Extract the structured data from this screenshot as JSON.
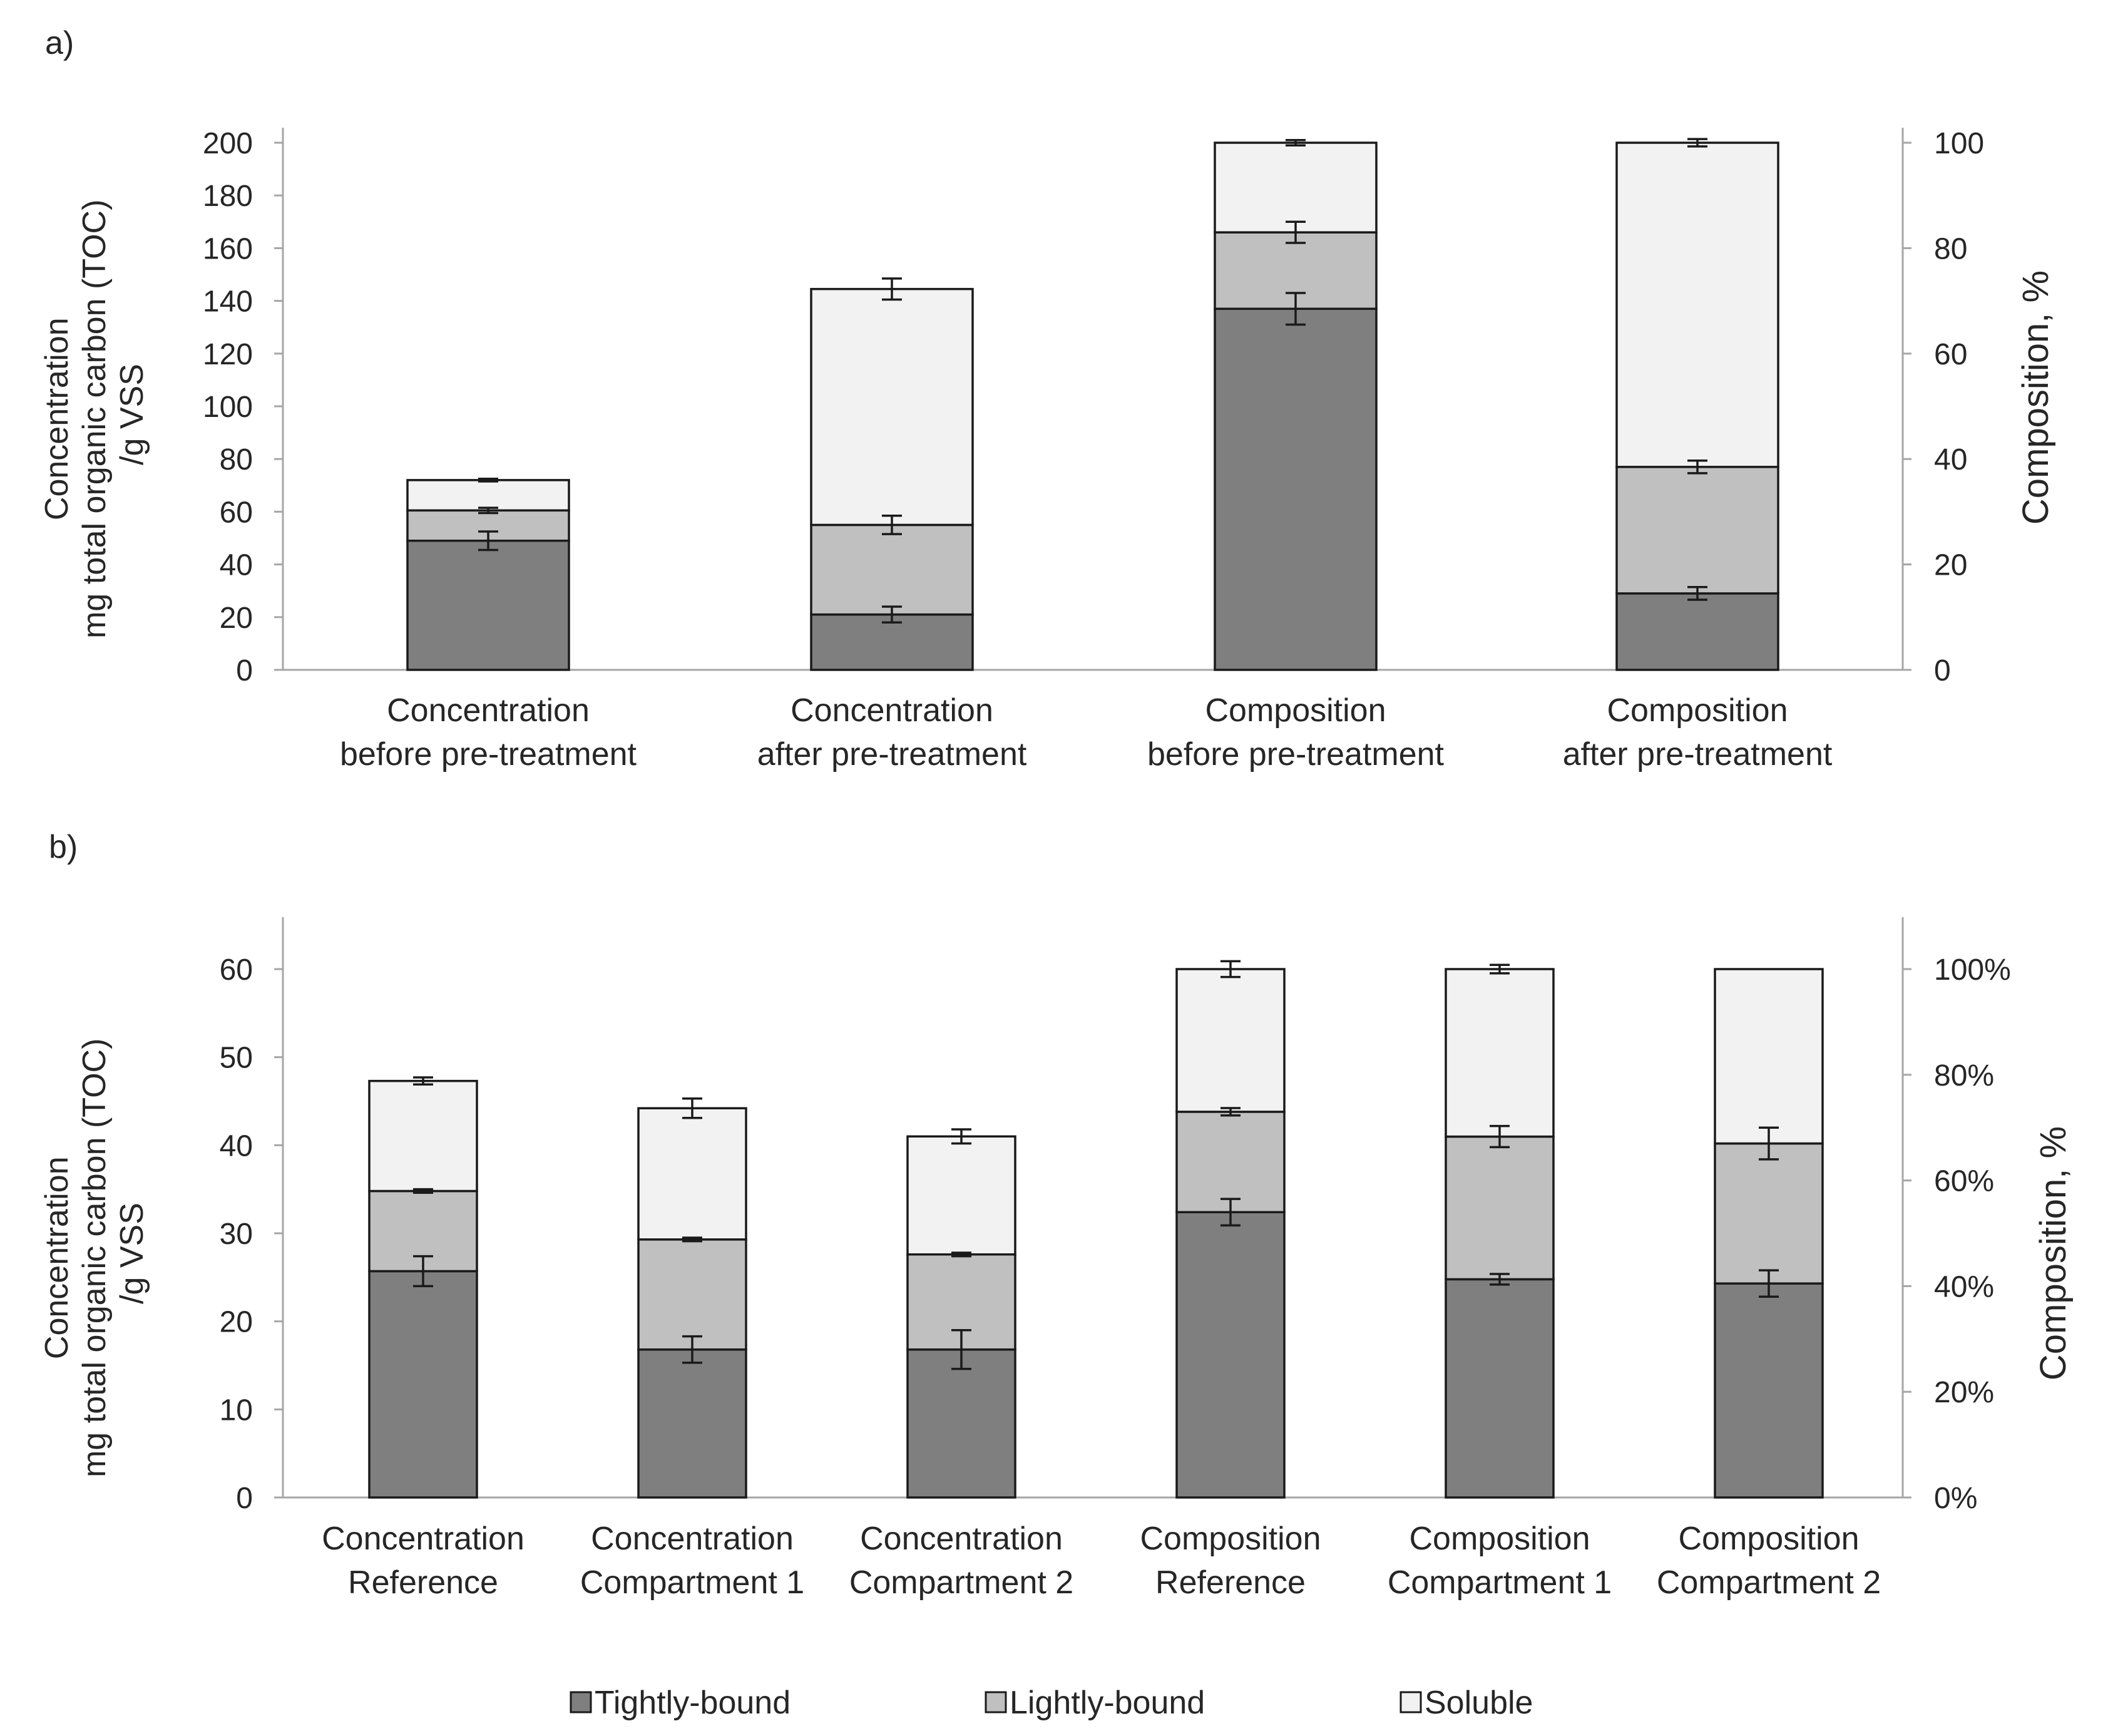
{
  "colors": {
    "tightly_bound": "#7f7f7f",
    "lightly_bound": "#c0c0c0",
    "soluble": "#f2f2f2",
    "axis": "#a6a6a6",
    "outline": "#1a1a1a"
  },
  "legend": {
    "tightly_bound": "Tightly-bound",
    "lightly_bound": "Lightly-bound",
    "soluble": "Soluble"
  },
  "chart_data": [
    {
      "panel": "a)",
      "type": "bar",
      "stacked": true,
      "categories": [
        [
          "Concentration",
          "before pre-treatment"
        ],
        [
          "Concentration",
          "after pre-treatment"
        ],
        [
          "Composition",
          "before pre-treatment"
        ],
        [
          "Composition",
          "after pre-treatment"
        ]
      ],
      "series": [
        {
          "name": "Tightly-bound",
          "values": [
            49,
            21,
            68.5,
            14.5
          ],
          "errors": [
            3.5,
            3,
            3,
            1.2
          ]
        },
        {
          "name": "Lightly-bound",
          "values": [
            11.5,
            34,
            14.5,
            24
          ],
          "errors": [
            1,
            3.5,
            2,
            1.2
          ]
        },
        {
          "name": "Soluble",
          "values": [
            11.5,
            89.5,
            17,
            61.5
          ],
          "errors": [
            0.5,
            4,
            0.5,
            0.7
          ]
        }
      ],
      "axis_units": [
        "left",
        "left",
        "right",
        "right"
      ],
      "ylabel_left": [
        "Concentration",
        "mg total organic carbon (TOC)",
        "/g VSS"
      ],
      "ylabel_right": "Composition, %",
      "ylim_left": [
        0,
        200
      ],
      "yticks_left": [
        "0",
        "20",
        "40",
        "60",
        "80",
        "100",
        "120",
        "140",
        "160",
        "180",
        "200"
      ],
      "ylim_right": [
        0,
        100
      ],
      "yticks_right": [
        "0",
        "20",
        "40",
        "60",
        "80",
        "100"
      ]
    },
    {
      "panel": "b)",
      "type": "bar",
      "stacked": true,
      "categories": [
        [
          "Concentration",
          "Reference"
        ],
        [
          "Concentration",
          "Compartment 1"
        ],
        [
          "Concentration",
          "Compartment 2"
        ],
        [
          "Composition",
          "Reference"
        ],
        [
          "Composition",
          "Compartment 1"
        ],
        [
          "Composition",
          "Compartment 2"
        ]
      ],
      "series": [
        {
          "name": "Tightly-bound",
          "values": [
            25.7,
            16.8,
            16.8,
            54,
            41.3,
            40.5
          ],
          "errors": [
            1.7,
            1.5,
            2.2,
            2.5,
            1.0,
            2.5
          ]
        },
        {
          "name": "Lightly-bound",
          "values": [
            9.1,
            12.5,
            10.8,
            19,
            27,
            26.5
          ],
          "errors": [
            0.2,
            0.2,
            0.2,
            0.7,
            2.0,
            3.0
          ]
        },
        {
          "name": "Soluble",
          "values": [
            12.5,
            14.9,
            13.4,
            27,
            31.7,
            33
          ],
          "errors": [
            0.4,
            1.1,
            0.8,
            1.5,
            0.8,
            0
          ]
        }
      ],
      "axis_units": [
        "left",
        "left",
        "left",
        "right",
        "right",
        "right"
      ],
      "ylabel_left": [
        "Concentration",
        "mg total organic carbon (TOC)",
        "/g VSS"
      ],
      "ylabel_right": "Composition, %",
      "ylim_left": [
        0,
        66
      ],
      "yticks_left": [
        "0",
        "10",
        "20",
        "30",
        "40",
        "50",
        "60"
      ],
      "ylim_right": [
        0,
        110
      ],
      "yticks_right": [
        "0%",
        "20%",
        "40%",
        "60%",
        "80%",
        "100%"
      ]
    }
  ]
}
